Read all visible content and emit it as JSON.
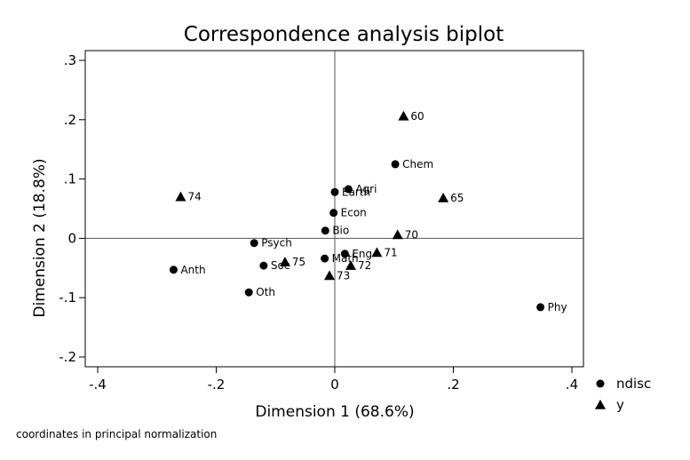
{
  "chart_data": {
    "type": "scatter",
    "title": "Correspondence analysis biplot",
    "xlabel": "Dimension 1 (68.6%)",
    "ylabel": "Dimension 2 (18.8%)",
    "xlim": [
      -0.4,
      0.4
    ],
    "ylim": [
      -0.2,
      0.3
    ],
    "xticks": [
      {
        "value": -0.4,
        "label": "-.4"
      },
      {
        "value": -0.2,
        "label": "-.2"
      },
      {
        "value": 0,
        "label": "0"
      },
      {
        "value": 0.2,
        "label": ".2"
      },
      {
        "value": 0.4,
        "label": ".4"
      }
    ],
    "yticks": [
      {
        "value": -0.2,
        "label": "-.2"
      },
      {
        "value": -0.1,
        "label": "-.1"
      },
      {
        "value": 0,
        "label": "0"
      },
      {
        "value": 0.1,
        "label": ".1"
      },
      {
        "value": 0.2,
        "label": ".2"
      },
      {
        "value": 0.3,
        "label": ".3"
      }
    ],
    "reference_lines": {
      "x": 0,
      "y": 0
    },
    "grid": false,
    "legend_position": "bottom-right",
    "note": "coordinates in principal normalization",
    "series": [
      {
        "name": "ndisc",
        "marker": "circle",
        "color": "#000000",
        "points": [
          {
            "label": "Agri",
            "x": 0.023,
            "y": 0.083
          },
          {
            "label": "Earth",
            "x": 0.0,
            "y": 0.078
          },
          {
            "label": "Chem",
            "x": 0.102,
            "y": 0.125
          },
          {
            "label": "Econ",
            "x": -0.002,
            "y": 0.043
          },
          {
            "label": "Bio",
            "x": -0.016,
            "y": 0.013
          },
          {
            "label": "Psych",
            "x": -0.136,
            "y": -0.008
          },
          {
            "label": "Soc",
            "x": -0.12,
            "y": -0.046
          },
          {
            "label": "Math",
            "x": -0.017,
            "y": -0.034
          },
          {
            "label": "Eng",
            "x": 0.017,
            "y": -0.026
          },
          {
            "label": "Anth",
            "x": -0.272,
            "y": -0.053
          },
          {
            "label": "Oth",
            "x": -0.145,
            "y": -0.091
          },
          {
            "label": "Phy",
            "x": 0.347,
            "y": -0.116
          }
        ]
      },
      {
        "name": "y",
        "marker": "triangle",
        "color": "#000000",
        "points": [
          {
            "label": "60",
            "x": 0.116,
            "y": 0.206
          },
          {
            "label": "65",
            "x": 0.183,
            "y": 0.068
          },
          {
            "label": "74",
            "x": -0.26,
            "y": 0.07
          },
          {
            "label": "70",
            "x": 0.106,
            "y": 0.006
          },
          {
            "label": "71",
            "x": 0.071,
            "y": -0.024
          },
          {
            "label": "72",
            "x": 0.027,
            "y": -0.046
          },
          {
            "label": "75",
            "x": -0.084,
            "y": -0.04
          },
          {
            "label": "73",
            "x": -0.009,
            "y": -0.063
          }
        ]
      }
    ]
  }
}
